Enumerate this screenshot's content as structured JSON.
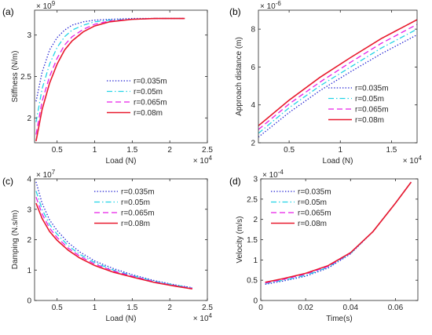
{
  "chart_data": [
    {
      "panel": "(a)",
      "type": "line",
      "xlabel": "Load (N)",
      "ylabel": "Stiffness (N/m)",
      "x_exponent": "× 10^4",
      "y_exponent": "× 10^9",
      "xlim": [
        0.2,
        2.5
      ],
      "ylim": [
        1.7,
        3.3
      ],
      "xticks": [
        0.5,
        1,
        1.5,
        2,
        2.5
      ],
      "xticklabels": [
        "0.5",
        "1",
        "1.5",
        "2",
        "2.5"
      ],
      "yticks": [
        2,
        2.5,
        3
      ],
      "yticklabels": [
        "2",
        "2.5",
        "3"
      ],
      "legend_location": "center-right",
      "series": [
        {
          "name": "r=0.035m",
          "color": "#1f1fd2",
          "dash": "dotted",
          "x": [
            0.22,
            0.3,
            0.4,
            0.5,
            0.6,
            0.7,
            0.85,
            1.0,
            1.2,
            1.5,
            1.8,
            2.2
          ],
          "y": [
            2.2,
            2.55,
            2.82,
            2.97,
            3.06,
            3.12,
            3.16,
            3.18,
            3.19,
            3.2,
            3.2,
            3.2
          ]
        },
        {
          "name": "r=0.05m",
          "color": "#22d3e6",
          "dash": "dashdot",
          "x": [
            0.22,
            0.3,
            0.4,
            0.5,
            0.6,
            0.7,
            0.85,
            1.0,
            1.2,
            1.5,
            1.8,
            2.2
          ],
          "y": [
            1.95,
            2.35,
            2.65,
            2.85,
            2.98,
            3.06,
            3.12,
            3.16,
            3.18,
            3.19,
            3.2,
            3.2
          ]
        },
        {
          "name": "r=0.065m",
          "color": "#e61ee6",
          "dash": "dashed",
          "x": [
            0.22,
            0.3,
            0.4,
            0.5,
            0.6,
            0.7,
            0.85,
            1.0,
            1.2,
            1.5,
            1.8,
            2.2
          ],
          "y": [
            1.8,
            2.2,
            2.5,
            2.72,
            2.88,
            2.98,
            3.07,
            3.13,
            3.17,
            3.19,
            3.2,
            3.2
          ]
        },
        {
          "name": "r=0.08m",
          "color": "#e8182c",
          "dash": "solid",
          "x": [
            0.22,
            0.3,
            0.4,
            0.5,
            0.6,
            0.7,
            0.85,
            1.0,
            1.2,
            1.5,
            1.8,
            2.2
          ],
          "y": [
            1.72,
            2.1,
            2.42,
            2.65,
            2.82,
            2.93,
            3.04,
            3.11,
            3.16,
            3.19,
            3.2,
            3.2
          ]
        }
      ]
    },
    {
      "panel": "(b)",
      "type": "line",
      "xlabel": "Load (N)",
      "ylabel": "Approach distance (m)",
      "x_exponent": "× 10^4",
      "y_exponent": "× 10^-6",
      "xlim": [
        0.2,
        1.75
      ],
      "ylim": [
        2,
        9
      ],
      "xticks": [
        0.5,
        1,
        1.5
      ],
      "xticklabels": [
        "0.5",
        "1",
        "1.5"
      ],
      "yticks": [
        2,
        4,
        6,
        8
      ],
      "yticklabels": [
        "2",
        "4",
        "6",
        "8"
      ],
      "legend_location": "bottom-right",
      "series": [
        {
          "name": "r=0.035m",
          "color": "#1f1fd2",
          "dash": "dotted",
          "x": [
            0.2,
            0.5,
            0.8,
            1.1,
            1.4,
            1.75
          ],
          "y": [
            2.3,
            3.6,
            4.75,
            5.75,
            6.7,
            7.7
          ]
        },
        {
          "name": "r=0.05m",
          "color": "#22d3e6",
          "dash": "dashdot",
          "x": [
            0.2,
            0.5,
            0.8,
            1.1,
            1.4,
            1.75
          ],
          "y": [
            2.5,
            3.85,
            5.0,
            6.0,
            7.0,
            8.0
          ]
        },
        {
          "name": "r=0.065m",
          "color": "#e61ee6",
          "dash": "dashed",
          "x": [
            0.2,
            0.5,
            0.8,
            1.1,
            1.4,
            1.75
          ],
          "y": [
            2.7,
            4.05,
            5.2,
            6.25,
            7.25,
            8.25
          ]
        },
        {
          "name": "r=0.08m",
          "color": "#e8182c",
          "dash": "solid",
          "x": [
            0.2,
            0.5,
            0.8,
            1.1,
            1.4,
            1.75
          ],
          "y": [
            2.9,
            4.25,
            5.45,
            6.5,
            7.5,
            8.5
          ]
        }
      ]
    },
    {
      "panel": "(c)",
      "type": "line",
      "xlabel": "Load (N)",
      "ylabel": "Damping (N.s/m)",
      "x_exponent": "× 10^4",
      "y_exponent": "× 10^7",
      "xlim": [
        0.2,
        2.5
      ],
      "ylim": [
        0,
        4
      ],
      "xticks": [
        0.5,
        1,
        1.5,
        2,
        2.5
      ],
      "xticklabels": [
        "0.5",
        "1",
        "1.5",
        "2",
        "2.5"
      ],
      "yticks": [
        0,
        1,
        2,
        3,
        4
      ],
      "yticklabels": [
        "0",
        "1",
        "2",
        "3",
        "4"
      ],
      "legend_location": "top-right",
      "series": [
        {
          "name": "r=0.035m",
          "color": "#1f1fd2",
          "dash": "dotted",
          "x": [
            0.22,
            0.3,
            0.4,
            0.5,
            0.65,
            0.8,
            1.0,
            1.25,
            1.5,
            1.8,
            2.1,
            2.3
          ],
          "y": [
            3.9,
            3.2,
            2.65,
            2.3,
            1.9,
            1.6,
            1.3,
            1.05,
            0.85,
            0.65,
            0.5,
            0.42
          ]
        },
        {
          "name": "r=0.05m",
          "color": "#22d3e6",
          "dash": "dashdot",
          "x": [
            0.22,
            0.3,
            0.4,
            0.5,
            0.65,
            0.8,
            1.0,
            1.25,
            1.5,
            1.8,
            2.1,
            2.3
          ],
          "y": [
            3.6,
            3.0,
            2.5,
            2.18,
            1.8,
            1.52,
            1.25,
            1.0,
            0.82,
            0.63,
            0.49,
            0.41
          ]
        },
        {
          "name": "r=0.065m",
          "color": "#e61ee6",
          "dash": "dashed",
          "x": [
            0.22,
            0.3,
            0.4,
            0.5,
            0.65,
            0.8,
            1.0,
            1.25,
            1.5,
            1.8,
            2.1,
            2.3
          ],
          "y": [
            3.4,
            2.85,
            2.38,
            2.07,
            1.72,
            1.46,
            1.2,
            0.97,
            0.8,
            0.61,
            0.47,
            0.4
          ]
        },
        {
          "name": "r=0.08m",
          "color": "#e8182c",
          "dash": "solid",
          "x": [
            0.22,
            0.3,
            0.4,
            0.5,
            0.65,
            0.8,
            1.0,
            1.25,
            1.5,
            1.8,
            2.1,
            2.3
          ],
          "y": [
            3.2,
            2.7,
            2.27,
            1.98,
            1.65,
            1.4,
            1.15,
            0.93,
            0.77,
            0.59,
            0.46,
            0.38
          ]
        }
      ]
    },
    {
      "panel": "(d)",
      "type": "line",
      "xlabel": "Time(s)",
      "ylabel": "Velocity (m/s)",
      "y_exponent": "× 10^-4",
      "xlim": [
        0,
        0.07
      ],
      "ylim": [
        0,
        3
      ],
      "xticks": [
        0,
        0.02,
        0.04,
        0.06
      ],
      "xticklabels": [
        "0",
        "0.02",
        "0.04",
        "0.06"
      ],
      "yticks": [
        0,
        0.5,
        1,
        1.5,
        2,
        2.5,
        3
      ],
      "yticklabels": [
        "0",
        "0.5",
        "1",
        "1.5",
        "2",
        "2.5",
        "3"
      ],
      "legend_location": "top-left",
      "series": [
        {
          "name": "r=0.035m",
          "color": "#1f1fd2",
          "dash": "dotted",
          "x": [
            0.002,
            0.01,
            0.02,
            0.03,
            0.04,
            0.05,
            0.06,
            0.067
          ],
          "y": [
            0.4,
            0.48,
            0.6,
            0.8,
            1.15,
            1.7,
            2.4,
            2.92
          ]
        },
        {
          "name": "r=0.05m",
          "color": "#22d3e6",
          "dash": "dashdot",
          "x": [
            0.002,
            0.01,
            0.02,
            0.03,
            0.04,
            0.05,
            0.06,
            0.067
          ],
          "y": [
            0.42,
            0.5,
            0.62,
            0.82,
            1.16,
            1.7,
            2.4,
            2.92
          ]
        },
        {
          "name": "r=0.065m",
          "color": "#e61ee6",
          "dash": "dashed",
          "x": [
            0.002,
            0.01,
            0.02,
            0.03,
            0.04,
            0.05,
            0.06,
            0.067
          ],
          "y": [
            0.43,
            0.52,
            0.65,
            0.84,
            1.17,
            1.7,
            2.4,
            2.92
          ]
        },
        {
          "name": "r=0.08m",
          "color": "#e8182c",
          "dash": "solid",
          "x": [
            0.002,
            0.01,
            0.02,
            0.03,
            0.04,
            0.05,
            0.06,
            0.067
          ],
          "y": [
            0.45,
            0.54,
            0.67,
            0.86,
            1.18,
            1.7,
            2.4,
            2.92
          ]
        }
      ]
    }
  ]
}
